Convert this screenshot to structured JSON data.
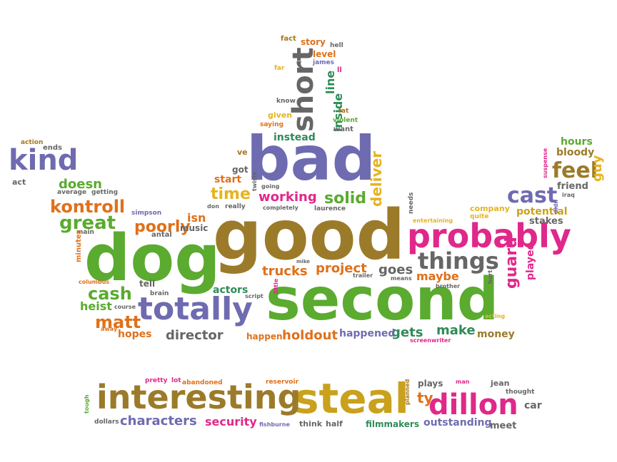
{
  "words": {
    "good": "good",
    "dog": "dog",
    "second": "second",
    "bad": "bad",
    "probably": "probably",
    "totally": "totally",
    "steal": "steal",
    "interesting": "interesting",
    "dillon": "dillon",
    "short": "short",
    "kind": "kind",
    "things": "things",
    "cast": "cast",
    "feel": "feel",
    "great": "great",
    "kontroll": "kontroll",
    "cash": "cash",
    "matt": "matt",
    "poorly": "poorly",
    "time": "time",
    "solid": "solid",
    "working": "working",
    "trucks": "trucks",
    "project": "project",
    "goes": "goes",
    "maybe": "maybe",
    "guard": "guard",
    "gets": "gets",
    "make": "make",
    "director": "director",
    "holdout": "holdout",
    "happened": "happened",
    "characters": "characters",
    "security": "security",
    "outstanding": "outstanding",
    "filmmakers": "filmmakers",
    "deliver": "deliver",
    "inside": "inside",
    "line": "line",
    "doesn": "doesn",
    "isn": "isn",
    "heist": "heist",
    "hopes": "hopes",
    "actors": "actors",
    "happen": "happen",
    "money": "money",
    "potential": "potential",
    "hours": "hours",
    "bloody": "bloody",
    "guy": "guy",
    "friend": "friend",
    "stakes": "stakes",
    "company": "company",
    "played": "played",
    "instead": "instead",
    "start": "start",
    "got": "got",
    "ve": "ve",
    "story": "story",
    "level": "level",
    "fact": "fact",
    "hell": "hell",
    "james": "james",
    "far": "far",
    "ll": "ll",
    "know": "know",
    "given": "given",
    "saying": "saying",
    "fat": "fat",
    "violent": "violent",
    "want": "want",
    "action": "action",
    "ends": "ends",
    "act": "act",
    "average": "average",
    "getting": "getting",
    "simpson": "simpson",
    "antal": "antal",
    "main": "main",
    "music": "music",
    "don": "don",
    "really": "really",
    "twists": "twists",
    "going": "going",
    "completely": "completely",
    "laurence": "laurence",
    "needs": "needs",
    "entertaining": "entertaining",
    "quite": "quite",
    "suspense": "suspense",
    "iraq": "iraq",
    "didn": "didn",
    "minutes": "minutes",
    "columbus": "columbus",
    "tell": "tell",
    "brain": "brain",
    "course": "course",
    "away": "away",
    "script": "script",
    "little": "little",
    "mike": "mike",
    "trailer": "trailer",
    "means": "means",
    "brother": "brother",
    "hurt": "hurt",
    "acting": "acting",
    "screenwriter": "screenwriter",
    "pretty": "pretty",
    "lot": "lot",
    "abandoned": "abandoned",
    "reservoir": "reservoir",
    "plays": "plays",
    "man": "man",
    "jean": "jean",
    "thought": "thought",
    "tough": "tough",
    "planned": "planned",
    "ty": "ty",
    "car": "car",
    "dollars": "dollars",
    "fishburne": "fishburne",
    "think": "think",
    "half": "half",
    "meet": "meet"
  }
}
